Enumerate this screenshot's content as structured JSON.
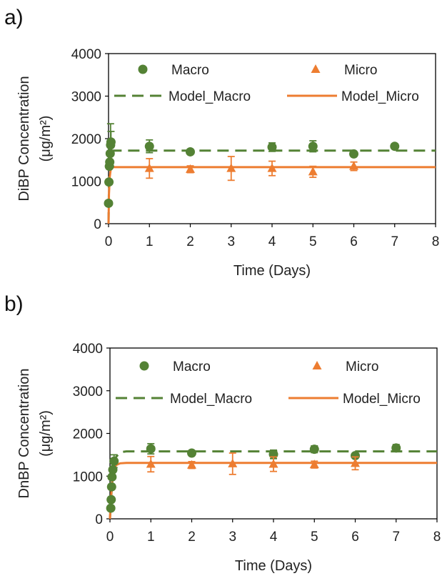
{
  "chart_data": [
    {
      "type": "scatter",
      "panel_label": "a)",
      "title": "",
      "xlabel": "Time (Days)",
      "ylabel": "DiBP Concentration",
      "ylabel_unit": "(μg/m²)",
      "xlim": [
        0,
        8
      ],
      "ylim": [
        0,
        4000
      ],
      "xticks": [
        "0",
        "1",
        "2",
        "3",
        "4",
        "5",
        "6",
        "7",
        "8"
      ],
      "yticks": [
        "0",
        "1000",
        "2000",
        "3000",
        "4000"
      ],
      "grid": false,
      "legend_position": "top",
      "colors": {
        "macro": "#548235",
        "micro": "#ED7D31"
      },
      "series": [
        {
          "name": "Macro",
          "kind": "points",
          "marker": "circle",
          "x": [
            0.0,
            0.01,
            0.02,
            0.03,
            0.04,
            0.05,
            0.06,
            1,
            2,
            4,
            5,
            6,
            7
          ],
          "y": [
            480,
            980,
            1350,
            1450,
            1650,
            1850,
            1920,
            1820,
            1690,
            1800,
            1820,
            1640,
            1820
          ],
          "err": [
            0,
            0,
            0,
            0,
            0,
            500,
            250,
            150,
            0,
            100,
            130,
            0,
            0
          ]
        },
        {
          "name": "Micro",
          "kind": "points",
          "marker": "triangle",
          "x": [
            1,
            2,
            3,
            4,
            5,
            6
          ],
          "y": [
            1300,
            1280,
            1300,
            1300,
            1220,
            1350
          ],
          "err": [
            230,
            80,
            280,
            170,
            130,
            100
          ]
        },
        {
          "name": "Model_Macro",
          "kind": "line",
          "style": "dashed",
          "x": [
            0,
            0.01,
            0.03,
            0.05,
            0.08,
            0.12,
            8
          ],
          "y": [
            0,
            900,
            1450,
            1650,
            1710,
            1720,
            1720
          ]
        },
        {
          "name": "Model_Micro",
          "kind": "line",
          "style": "solid",
          "x": [
            0,
            0.01,
            0.03,
            0.05,
            0.08,
            0.12,
            8
          ],
          "y": [
            0,
            700,
            1100,
            1260,
            1320,
            1330,
            1330
          ]
        }
      ]
    },
    {
      "type": "scatter",
      "panel_label": "b)",
      "title": "",
      "xlabel": "Time (Days)",
      "ylabel": "DnBP Concentration",
      "ylabel_unit": "(μg/m²)",
      "xlim": [
        0,
        8
      ],
      "ylim": [
        0,
        4000
      ],
      "xticks": [
        "0",
        "1",
        "2",
        "3",
        "4",
        "5",
        "6",
        "7",
        "8"
      ],
      "yticks": [
        "0",
        "1000",
        "2000",
        "3000",
        "4000"
      ],
      "grid": false,
      "legend_position": "top",
      "colors": {
        "macro": "#548235",
        "micro": "#ED7D31"
      },
      "series": [
        {
          "name": "Macro",
          "kind": "points",
          "marker": "circle",
          "x": [
            0.02,
            0.03,
            0.04,
            0.05,
            0.07,
            0.1,
            1,
            2,
            4,
            5,
            6,
            7
          ],
          "y": [
            250,
            450,
            750,
            980,
            1150,
            1350,
            1640,
            1540,
            1510,
            1630,
            1480,
            1660
          ],
          "err": [
            0,
            0,
            0,
            0,
            0,
            150,
            120,
            0,
            100,
            80,
            0,
            80
          ]
        },
        {
          "name": "Micro",
          "kind": "points",
          "marker": "triangle",
          "x": [
            1,
            2,
            3,
            4,
            5,
            6
          ],
          "y": [
            1280,
            1260,
            1290,
            1280,
            1270,
            1300
          ],
          "err": [
            180,
            80,
            250,
            170,
            80,
            150
          ]
        },
        {
          "name": "Model_Macro",
          "kind": "line",
          "style": "dashed",
          "x": [
            0,
            0.03,
            0.06,
            0.1,
            0.15,
            0.25,
            0.4,
            8
          ],
          "y": [
            0,
            500,
            900,
            1250,
            1450,
            1560,
            1580,
            1580
          ]
        },
        {
          "name": "Model_Micro",
          "kind": "line",
          "style": "solid",
          "x": [
            0,
            0.02,
            0.05,
            0.1,
            0.15,
            0.25,
            0.4,
            8
          ],
          "y": [
            0,
            400,
            850,
            1150,
            1260,
            1300,
            1310,
            1310
          ]
        }
      ]
    }
  ]
}
